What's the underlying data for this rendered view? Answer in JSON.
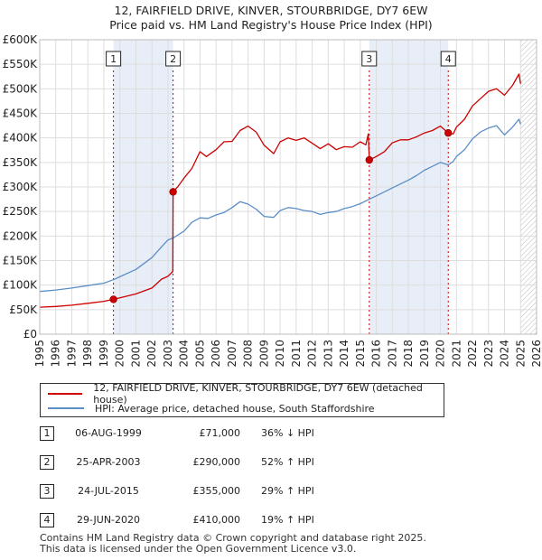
{
  "title_line1": "12, FAIRFIELD DRIVE, KINVER, STOURBRIDGE, DY7 6EW",
  "title_line2": "Price paid vs. HM Land Registry's House Price Index (HPI)",
  "colors": {
    "property": "#cc0000",
    "hpi": "#5b8ec7",
    "shade": "#e8eef8",
    "grid": "#dddddd"
  },
  "chart_data": {
    "type": "line",
    "title": "12, FAIRFIELD DRIVE, KINVER, STOURBRIDGE, DY7 6EW — Price paid vs. HM Land Registry's House Price Index (HPI)",
    "xlabel": "",
    "ylabel": "",
    "xlim": [
      1995,
      2026
    ],
    "ylim": [
      0,
      600000
    ],
    "x_ticks": [
      "1995",
      "1996",
      "1997",
      "1998",
      "1999",
      "2000",
      "2001",
      "2002",
      "2003",
      "2004",
      "2005",
      "2006",
      "2007",
      "2008",
      "2009",
      "2010",
      "2011",
      "2012",
      "2013",
      "2014",
      "2015",
      "2016",
      "2017",
      "2018",
      "2019",
      "2020",
      "2021",
      "2022",
      "2023",
      "2024",
      "2025",
      "2026"
    ],
    "y_ticks": [
      {
        "value": 0,
        "label": "£0"
      },
      {
        "value": 50000,
        "label": "£50K"
      },
      {
        "value": 100000,
        "label": "£100K"
      },
      {
        "value": 150000,
        "label": "£150K"
      },
      {
        "value": 200000,
        "label": "£200K"
      },
      {
        "value": 250000,
        "label": "£250K"
      },
      {
        "value": 300000,
        "label": "£300K"
      },
      {
        "value": 350000,
        "label": "£350K"
      },
      {
        "value": 400000,
        "label": "£400K"
      },
      {
        "value": 450000,
        "label": "£450K"
      },
      {
        "value": 500000,
        "label": "£500K"
      },
      {
        "value": 550000,
        "label": "£550K"
      },
      {
        "value": 600000,
        "label": "£600K"
      }
    ],
    "grid": true,
    "shaded_ranges": [
      [
        1999.6,
        2003.32
      ],
      [
        2015.56,
        2020.49
      ]
    ],
    "future_hatch_from": 2025.0,
    "series": [
      {
        "name": "12, FAIRFIELD DRIVE, KINVER, STOURBRIDGE, DY7 6EW (detached house)",
        "points": [
          [
            1995.0,
            55000
          ],
          [
            1996.0,
            56500
          ],
          [
            1997.0,
            59000
          ],
          [
            1998.0,
            63000
          ],
          [
            1999.0,
            67000
          ],
          [
            1999.6,
            71000
          ],
          [
            2000.0,
            74000
          ],
          [
            2001.0,
            82000
          ],
          [
            2002.0,
            94000
          ],
          [
            2002.6,
            112000
          ],
          [
            2003.0,
            118000
          ],
          [
            2003.3,
            128000
          ],
          [
            2003.32,
            290000
          ],
          [
            2003.6,
            300000
          ],
          [
            2004.0,
            318000
          ],
          [
            2004.5,
            338000
          ],
          [
            2005.0,
            372000
          ],
          [
            2005.4,
            362000
          ],
          [
            2006.0,
            376000
          ],
          [
            2006.5,
            392000
          ],
          [
            2007.0,
            393000
          ],
          [
            2007.5,
            415000
          ],
          [
            2008.0,
            424000
          ],
          [
            2008.5,
            412000
          ],
          [
            2009.0,
            385000
          ],
          [
            2009.6,
            368000
          ],
          [
            2010.0,
            392000
          ],
          [
            2010.5,
            400000
          ],
          [
            2011.0,
            395000
          ],
          [
            2011.5,
            400000
          ],
          [
            2012.0,
            389000
          ],
          [
            2012.5,
            378000
          ],
          [
            2013.0,
            388000
          ],
          [
            2013.5,
            376000
          ],
          [
            2014.0,
            382000
          ],
          [
            2014.5,
            381000
          ],
          [
            2015.0,
            392000
          ],
          [
            2015.35,
            386000
          ],
          [
            2015.5,
            408000
          ],
          [
            2015.56,
            355000
          ],
          [
            2016.0,
            362000
          ],
          [
            2016.5,
            372000
          ],
          [
            2017.0,
            390000
          ],
          [
            2017.5,
            396000
          ],
          [
            2018.0,
            396000
          ],
          [
            2018.5,
            402000
          ],
          [
            2019.0,
            410000
          ],
          [
            2019.5,
            415000
          ],
          [
            2020.0,
            424000
          ],
          [
            2020.49,
            410000
          ],
          [
            2020.8,
            408000
          ],
          [
            2021.0,
            422000
          ],
          [
            2021.5,
            438000
          ],
          [
            2022.0,
            465000
          ],
          [
            2022.5,
            480000
          ],
          [
            2023.0,
            495000
          ],
          [
            2023.5,
            500000
          ],
          [
            2024.0,
            487000
          ],
          [
            2024.5,
            507000
          ],
          [
            2024.9,
            530000
          ],
          [
            2025.0,
            510000
          ]
        ]
      },
      {
        "name": "HPI: Average price, detached house, South Staffordshire",
        "points": [
          [
            1995.0,
            87000
          ],
          [
            1996.0,
            90000
          ],
          [
            1997.0,
            94000
          ],
          [
            1998.0,
            99000
          ],
          [
            1999.0,
            104000
          ],
          [
            1999.6,
            111000
          ],
          [
            2000.0,
            117000
          ],
          [
            2001.0,
            132000
          ],
          [
            2002.0,
            156000
          ],
          [
            2002.6,
            178000
          ],
          [
            2003.0,
            192000
          ],
          [
            2003.32,
            196000
          ],
          [
            2004.0,
            210000
          ],
          [
            2004.5,
            228000
          ],
          [
            2005.0,
            237000
          ],
          [
            2005.5,
            236000
          ],
          [
            2006.0,
            243000
          ],
          [
            2006.5,
            248000
          ],
          [
            2007.0,
            258000
          ],
          [
            2007.5,
            270000
          ],
          [
            2008.0,
            265000
          ],
          [
            2008.5,
            255000
          ],
          [
            2009.0,
            240000
          ],
          [
            2009.6,
            238000
          ],
          [
            2010.0,
            252000
          ],
          [
            2010.5,
            258000
          ],
          [
            2011.0,
            256000
          ],
          [
            2011.5,
            252000
          ],
          [
            2012.0,
            250000
          ],
          [
            2012.5,
            244000
          ],
          [
            2013.0,
            248000
          ],
          [
            2013.5,
            250000
          ],
          [
            2014.0,
            256000
          ],
          [
            2014.5,
            260000
          ],
          [
            2015.0,
            266000
          ],
          [
            2015.56,
            275000
          ],
          [
            2016.0,
            282000
          ],
          [
            2016.5,
            290000
          ],
          [
            2017.0,
            298000
          ],
          [
            2017.5,
            306000
          ],
          [
            2018.0,
            314000
          ],
          [
            2018.5,
            323000
          ],
          [
            2019.0,
            334000
          ],
          [
            2019.5,
            342000
          ],
          [
            2020.0,
            350000
          ],
          [
            2020.49,
            345000
          ],
          [
            2020.8,
            352000
          ],
          [
            2021.0,
            362000
          ],
          [
            2021.5,
            376000
          ],
          [
            2022.0,
            398000
          ],
          [
            2022.5,
            412000
          ],
          [
            2023.0,
            420000
          ],
          [
            2023.5,
            425000
          ],
          [
            2024.0,
            406000
          ],
          [
            2024.5,
            422000
          ],
          [
            2024.9,
            438000
          ],
          [
            2025.0,
            428000
          ]
        ]
      }
    ],
    "sales": [
      {
        "label": "1",
        "x": 1999.6,
        "value": 71000
      },
      {
        "label": "2",
        "x": 2003.32,
        "value": 290000
      },
      {
        "label": "3",
        "x": 2015.56,
        "value": 355000
      },
      {
        "label": "4",
        "x": 2020.49,
        "value": 410000
      }
    ]
  },
  "legend": {
    "property_label": "12, FAIRFIELD DRIVE, KINVER, STOURBRIDGE, DY7 6EW (detached house)",
    "hpi_label": "HPI: Average price, detached house, South Staffordshire"
  },
  "sales_table": [
    {
      "num": "1",
      "date": "06-AUG-1999",
      "price": "£71,000",
      "hpi": "36% ↓ HPI"
    },
    {
      "num": "2",
      "date": "25-APR-2003",
      "price": "£290,000",
      "hpi": "52% ↑ HPI"
    },
    {
      "num": "3",
      "date": "24-JUL-2015",
      "price": "£355,000",
      "hpi": "29% ↑ HPI"
    },
    {
      "num": "4",
      "date": "29-JUN-2020",
      "price": "£410,000",
      "hpi": "19% ↑ HPI"
    }
  ],
  "footer_line1": "Contains HM Land Registry data © Crown copyright and database right 2025.",
  "footer_line2": "This data is licensed under the Open Government Licence v3.0."
}
